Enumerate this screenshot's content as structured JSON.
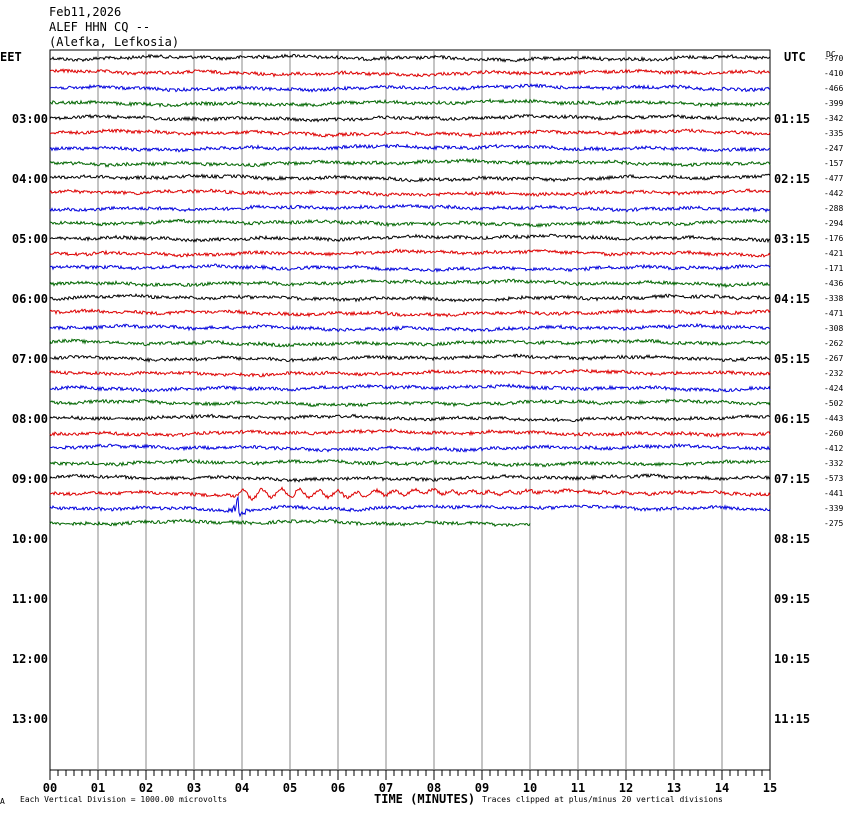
{
  "header": {
    "date": "Feb11,2026",
    "station": "ALEF HHN CQ --",
    "location": "(Alefka, Lefkosia)",
    "left_zone": "EET",
    "right_zone": "UTC",
    "dc_label": "DC"
  },
  "footer": {
    "corner_mark": "A",
    "scale_note": "Each Vertical Division = 1000.00 microvolts",
    "xlabel": "TIME (MINUTES)",
    "clip_note": "Traces clipped at plus/minus 20 vertical divisions"
  },
  "chart_data": {
    "type": "line",
    "title": "Feb11,2026",
    "xlabel": "TIME (MINUTES)",
    "xlim": [
      0,
      15
    ],
    "x_ticks": [
      "00",
      "01",
      "02",
      "03",
      "04",
      "05",
      "06",
      "07",
      "08",
      "09",
      "10",
      "11",
      "12",
      "13",
      "14",
      "15"
    ],
    "left_time_labels": [
      "03:00",
      "04:00",
      "05:00",
      "06:00",
      "07:00",
      "08:00",
      "09:00",
      "10:00",
      "11:00",
      "12:00",
      "13:00"
    ],
    "right_time_labels": [
      "01:15",
      "02:15",
      "03:15",
      "04:15",
      "05:15",
      "06:15",
      "07:15",
      "08:15",
      "09:15",
      "10:15",
      "11:15"
    ],
    "trace_colors": [
      "#000000",
      "#dd0000",
      "#0000dd",
      "#006600"
    ],
    "trace_count": 32,
    "trace_dc_offsets": [
      "-370",
      "-410",
      "-466",
      "-399",
      "-342",
      "-335",
      "-247",
      "-157",
      "-477",
      "-442",
      "-288",
      "-294",
      "-176",
      "-421",
      "-171",
      "-436",
      "-338",
      "-471",
      "-308",
      "-262",
      "-267",
      "-232",
      "-424",
      "-502",
      "-443",
      "-260",
      "-412",
      "-332",
      "-573",
      "-441",
      "-339",
      "-275"
    ],
    "last_trace_end_minute": 10,
    "event": {
      "start_minute": 3.6,
      "traces": [
        29,
        30
      ]
    }
  }
}
